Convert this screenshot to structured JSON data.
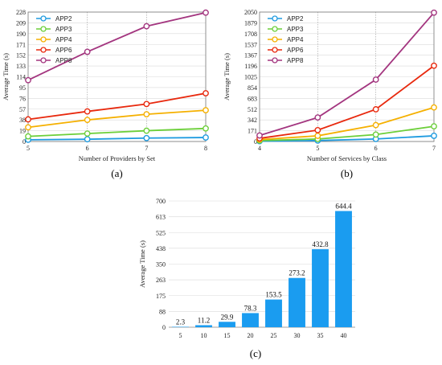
{
  "chart_data": [
    {
      "type": "line",
      "panel_label": "(a)",
      "xlabel": "Number of Providers by Set",
      "ylabel": "Average Time (s)",
      "x": [
        5,
        6,
        7,
        8
      ],
      "xticks": [
        "5",
        "6",
        "7",
        "8"
      ],
      "yticks": [
        0,
        19,
        38,
        57,
        76,
        95,
        114,
        133,
        152,
        171,
        190,
        209,
        228
      ],
      "ylim": [
        0,
        228
      ],
      "xlim": [
        5,
        8
      ],
      "legend_position": "top-left",
      "series": [
        {
          "name": "APP2",
          "color": "#1f9be0",
          "values": [
            3,
            4,
            6,
            7
          ]
        },
        {
          "name": "APP3",
          "color": "#6ccf3a",
          "values": [
            9,
            14,
            19,
            23
          ]
        },
        {
          "name": "APP4",
          "color": "#f5b000",
          "values": [
            25,
            38,
            48,
            55
          ]
        },
        {
          "name": "APP6",
          "color": "#e8290e",
          "values": [
            39,
            53,
            66,
            85
          ]
        },
        {
          "name": "APP8",
          "color": "#a3357f",
          "values": [
            108,
            158,
            203,
            227
          ]
        }
      ]
    },
    {
      "type": "line",
      "panel_label": "(b)",
      "xlabel": "Number of Services by Class",
      "ylabel": "Average Time (s)",
      "x": [
        4,
        5,
        6,
        7
      ],
      "xticks": [
        "4",
        "5",
        "6",
        "7"
      ],
      "yticks": [
        0,
        171,
        342,
        512,
        683,
        854,
        1025,
        1196,
        1367,
        1537,
        1708,
        1879,
        2050
      ],
      "ylim": [
        0,
        2050
      ],
      "xlim": [
        4,
        7
      ],
      "legend_position": "top-left",
      "series": [
        {
          "name": "APP2",
          "color": "#1f9be0",
          "values": [
            5,
            15,
            40,
            90
          ]
        },
        {
          "name": "APP3",
          "color": "#6ccf3a",
          "values": [
            15,
            40,
            110,
            240
          ]
        },
        {
          "name": "APP4",
          "color": "#f5b000",
          "values": [
            30,
            90,
            260,
            540
          ]
        },
        {
          "name": "APP6",
          "color": "#e8290e",
          "values": [
            50,
            180,
            510,
            1200
          ]
        },
        {
          "name": "APP8",
          "color": "#a3357f",
          "values": [
            95,
            380,
            980,
            2040
          ]
        }
      ]
    },
    {
      "type": "bar",
      "panel_label": "(c)",
      "xlabel": "",
      "ylabel": "Average Time (s)",
      "categories": [
        "5",
        "10",
        "15",
        "20",
        "25",
        "30",
        "35",
        "40"
      ],
      "values": [
        2.3,
        11.2,
        29.9,
        78.3,
        153.5,
        273.2,
        432.8,
        644.4
      ],
      "labels": [
        "2.3",
        "11.2",
        "29.9",
        "78.3",
        "153.5",
        "273.2",
        "432.8",
        "644.4"
      ],
      "yticks": [
        0,
        88,
        175,
        263,
        350,
        438,
        525,
        613,
        700
      ],
      "ylim": [
        0,
        700
      ],
      "color": "#1a9cf0"
    }
  ]
}
